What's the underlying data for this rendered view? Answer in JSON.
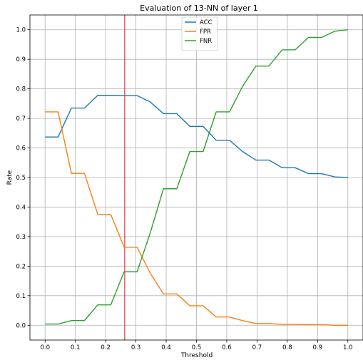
{
  "chart_data": {
    "type": "line",
    "title": "Evaluation of 13-NN of layer 1",
    "xlabel": "Threshold",
    "ylabel": "Rate",
    "xlim": [
      -0.05,
      1.05
    ],
    "ylim": [
      -0.05,
      1.05
    ],
    "xticks": [
      "0.0",
      "0.1",
      "0.2",
      "0.3",
      "0.4",
      "0.5",
      "0.6",
      "0.7",
      "0.8",
      "0.9",
      "1.0"
    ],
    "yticks": [
      "0.0",
      "0.1",
      "0.2",
      "0.3",
      "0.4",
      "0.5",
      "0.6",
      "0.7",
      "0.8",
      "0.9",
      "1.0"
    ],
    "grid": true,
    "legend_position": "top-center",
    "vline": {
      "x": 0.263,
      "color": "#d62728"
    },
    "x": [
      0.0,
      0.043,
      0.087,
      0.13,
      0.174,
      0.217,
      0.261,
      0.304,
      0.348,
      0.391,
      0.435,
      0.478,
      0.522,
      0.565,
      0.609,
      0.652,
      0.696,
      0.739,
      0.783,
      0.826,
      0.87,
      0.913,
      0.957,
      1.0
    ],
    "series": [
      {
        "name": "ACC",
        "color": "#1f77b4",
        "values": [
          0.637,
          0.637,
          0.735,
          0.735,
          0.778,
          0.778,
          0.777,
          0.777,
          0.755,
          0.716,
          0.716,
          0.673,
          0.673,
          0.626,
          0.626,
          0.588,
          0.559,
          0.559,
          0.533,
          0.533,
          0.513,
          0.513,
          0.502,
          0.5
        ]
      },
      {
        "name": "FPR",
        "color": "#ff7f0e",
        "values": [
          0.722,
          0.722,
          0.514,
          0.514,
          0.375,
          0.375,
          0.264,
          0.264,
          0.175,
          0.106,
          0.106,
          0.066,
          0.066,
          0.028,
          0.028,
          0.016,
          0.006,
          0.006,
          0.003,
          0.003,
          0.002,
          0.002,
          0.0,
          0.0
        ]
      },
      {
        "name": "FNR",
        "color": "#2ca02c",
        "values": [
          0.004,
          0.004,
          0.016,
          0.016,
          0.069,
          0.069,
          0.181,
          0.181,
          0.315,
          0.462,
          0.462,
          0.588,
          0.588,
          0.722,
          0.722,
          0.808,
          0.877,
          0.877,
          0.932,
          0.932,
          0.974,
          0.974,
          0.995,
          1.0
        ]
      }
    ]
  }
}
